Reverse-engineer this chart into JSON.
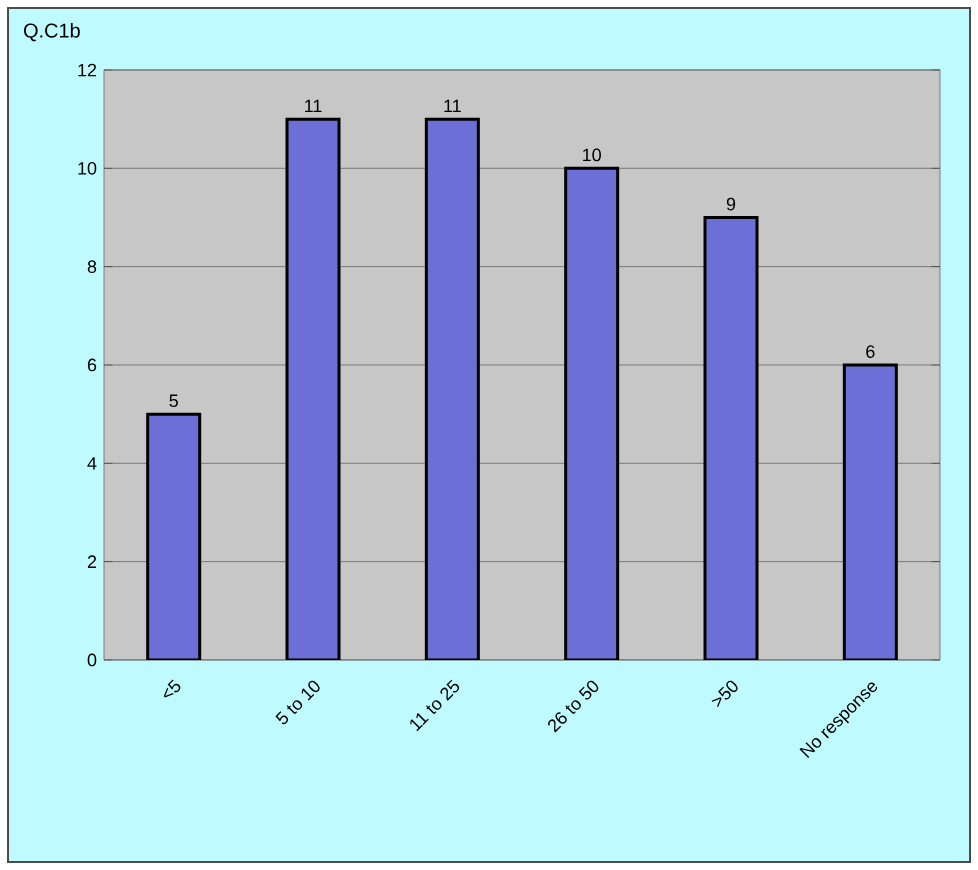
{
  "chart_data": {
    "type": "bar",
    "title": "Q.C1b",
    "categories": [
      "<5",
      "5 to 10",
      "11 to 25",
      "26 to 50",
      ">50",
      "No response"
    ],
    "values": [
      5,
      11,
      11,
      10,
      9,
      6
    ],
    "color": "#6b6fd6",
    "ylim": [
      0,
      12
    ],
    "yticks": [
      0,
      2,
      4,
      6,
      8,
      10,
      12
    ],
    "grid": "y",
    "data_labels": true
  }
}
